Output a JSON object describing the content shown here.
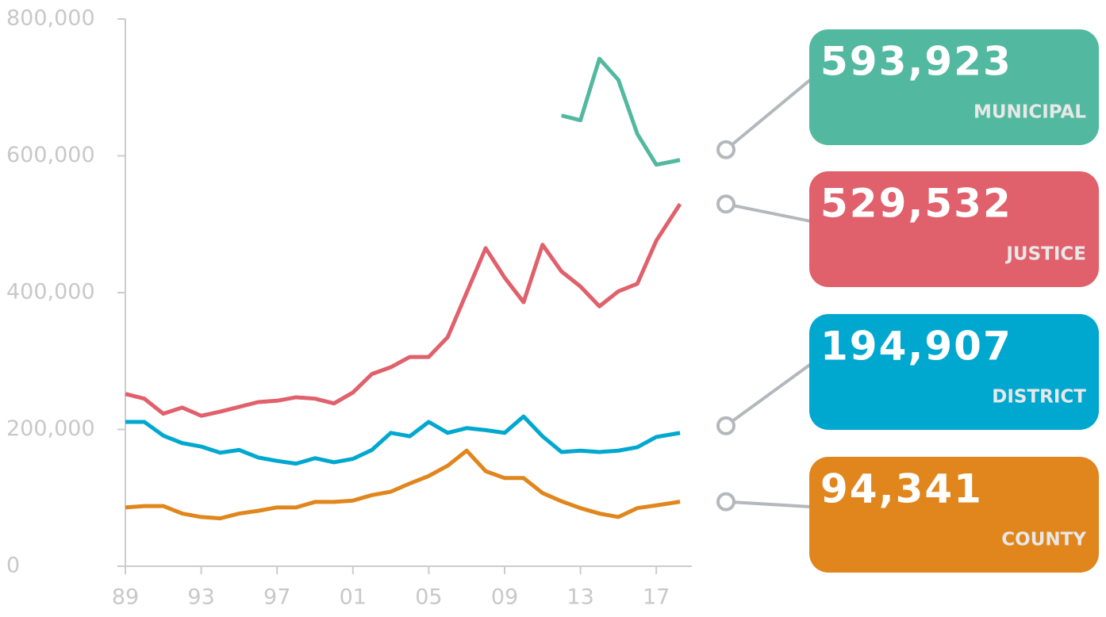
{
  "chart_data": {
    "type": "line",
    "categories": [
      "89",
      null,
      null,
      null,
      "93",
      null,
      null,
      null,
      "97",
      null,
      null,
      null,
      "01",
      null,
      null,
      null,
      "05",
      null,
      null,
      null,
      "09",
      null,
      null,
      null,
      "13",
      null,
      null,
      null,
      "17",
      null
    ],
    "ylim": [
      0,
      800000
    ],
    "yticks": [
      0,
      {
        "value": 200000,
        "label": "200,000"
      },
      {
        "value": 400000,
        "label": "400,000"
      },
      {
        "value": 600000,
        "label": "600,000"
      },
      {
        "value": 800000,
        "label": "800,000"
      }
    ],
    "series": [
      {
        "name": "MUNICIPAL",
        "color": "#52b9a0",
        "values": [
          null,
          null,
          null,
          null,
          null,
          null,
          null,
          null,
          null,
          null,
          null,
          null,
          null,
          null,
          null,
          null,
          null,
          null,
          null,
          null,
          null,
          null,
          null,
          659000,
          652000,
          742000,
          711000,
          632000,
          587000,
          593923
        ],
        "value_labels": [
          null,
          null,
          null,
          null,
          null,
          null,
          null,
          null,
          null,
          null,
          null,
          null,
          null,
          null,
          null,
          null,
          null,
          null,
          null,
          null,
          null,
          null,
          null,
          null,
          null,
          null,
          null,
          null,
          null,
          "593,923"
        ]
      },
      {
        "name": "JUSTICE",
        "color": "#e0606b",
        "values": [
          252000,
          245000,
          223000,
          232000,
          220000,
          226000,
          233000,
          240000,
          242000,
          247000,
          245000,
          238000,
          254000,
          281000,
          291000,
          306000,
          306000,
          335000,
          400000,
          465000,
          422000,
          386000,
          470000,
          431000,
          409000,
          380000,
          402000,
          413000,
          476000,
          529532
        ],
        "value_labels": [
          null,
          null,
          null,
          null,
          null,
          null,
          null,
          null,
          null,
          null,
          null,
          null,
          null,
          null,
          null,
          null,
          null,
          null,
          null,
          null,
          null,
          null,
          null,
          null,
          null,
          null,
          null,
          null,
          null,
          "529,532"
        ]
      },
      {
        "name": "DISTRICT",
        "color": "#00a8d0",
        "values": [
          211000,
          211000,
          191000,
          180000,
          175000,
          166000,
          170000,
          159000,
          154000,
          150000,
          158000,
          152000,
          157000,
          170000,
          195000,
          190000,
          211000,
          195000,
          202000,
          199000,
          195000,
          219000,
          190000,
          167000,
          169000,
          167000,
          169000,
          174000,
          189000,
          194907
        ],
        "value_labels": [
          null,
          null,
          null,
          null,
          null,
          null,
          null,
          null,
          null,
          null,
          null,
          null,
          null,
          null,
          null,
          null,
          null,
          null,
          null,
          null,
          null,
          null,
          null,
          null,
          null,
          null,
          null,
          null,
          null,
          "194,907"
        ]
      },
      {
        "name": "COUNTY",
        "color": "#e0861c",
        "values": [
          86000,
          88000,
          88000,
          77000,
          72000,
          70000,
          77000,
          81000,
          86000,
          86000,
          94000,
          94000,
          96000,
          104000,
          109000,
          121000,
          132000,
          147000,
          169000,
          139000,
          129000,
          129000,
          107000,
          95000,
          85000,
          77000,
          72000,
          85000,
          89000,
          94341
        ],
        "value_labels": [
          null,
          null,
          null,
          null,
          null,
          null,
          null,
          null,
          null,
          null,
          null,
          null,
          null,
          null,
          null,
          null,
          null,
          null,
          null,
          null,
          null,
          null,
          null,
          null,
          null,
          null,
          null,
          null,
          null,
          "94,341"
        ]
      }
    ]
  }
}
